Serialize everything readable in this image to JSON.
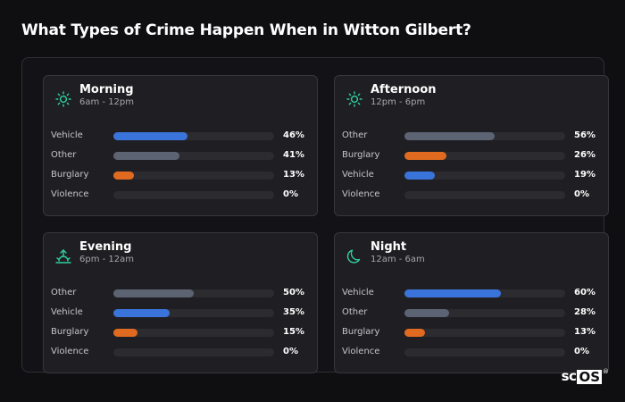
{
  "title": "What Types of Crime Happen When in Witton Gilbert?",
  "colors": {
    "vehicle": "#3a73d9",
    "other": "#5c6373",
    "burglary": "#e06a1f",
    "icon": "#2fd1a0"
  },
  "cards": [
    {
      "title": "Morning",
      "subtitle": "6am - 12pm",
      "icon": "sun-icon",
      "rows": [
        {
          "label": "Vehicle",
          "value": 46,
          "pct": "46%",
          "color": "#3a73d9"
        },
        {
          "label": "Other",
          "value": 41,
          "pct": "41%",
          "color": "#5c6373"
        },
        {
          "label": "Burglary",
          "value": 13,
          "pct": "13%",
          "color": "#e06a1f"
        },
        {
          "label": "Violence",
          "value": 0,
          "pct": "0%",
          "color": "#5c6373"
        }
      ]
    },
    {
      "title": "Afternoon",
      "subtitle": "12pm - 6pm",
      "icon": "sun-icon",
      "rows": [
        {
          "label": "Other",
          "value": 56,
          "pct": "56%",
          "color": "#5c6373"
        },
        {
          "label": "Burglary",
          "value": 26,
          "pct": "26%",
          "color": "#e06a1f"
        },
        {
          "label": "Vehicle",
          "value": 19,
          "pct": "19%",
          "color": "#3a73d9"
        },
        {
          "label": "Violence",
          "value": 0,
          "pct": "0%",
          "color": "#5c6373"
        }
      ]
    },
    {
      "title": "Evening",
      "subtitle": "6pm - 12am",
      "icon": "sunset-icon",
      "rows": [
        {
          "label": "Other",
          "value": 50,
          "pct": "50%",
          "color": "#5c6373"
        },
        {
          "label": "Vehicle",
          "value": 35,
          "pct": "35%",
          "color": "#3a73d9"
        },
        {
          "label": "Burglary",
          "value": 15,
          "pct": "15%",
          "color": "#e06a1f"
        },
        {
          "label": "Violence",
          "value": 0,
          "pct": "0%",
          "color": "#5c6373"
        }
      ]
    },
    {
      "title": "Night",
      "subtitle": "12am - 6am",
      "icon": "moon-icon",
      "rows": [
        {
          "label": "Vehicle",
          "value": 60,
          "pct": "60%",
          "color": "#3a73d9"
        },
        {
          "label": "Other",
          "value": 28,
          "pct": "28%",
          "color": "#5c6373"
        },
        {
          "label": "Burglary",
          "value": 13,
          "pct": "13%",
          "color": "#e06a1f"
        },
        {
          "label": "Violence",
          "value": 0,
          "pct": "0%",
          "color": "#5c6373"
        }
      ]
    }
  ],
  "logo": {
    "left": "sc",
    "boxed": "OS",
    "mark": "®"
  }
}
